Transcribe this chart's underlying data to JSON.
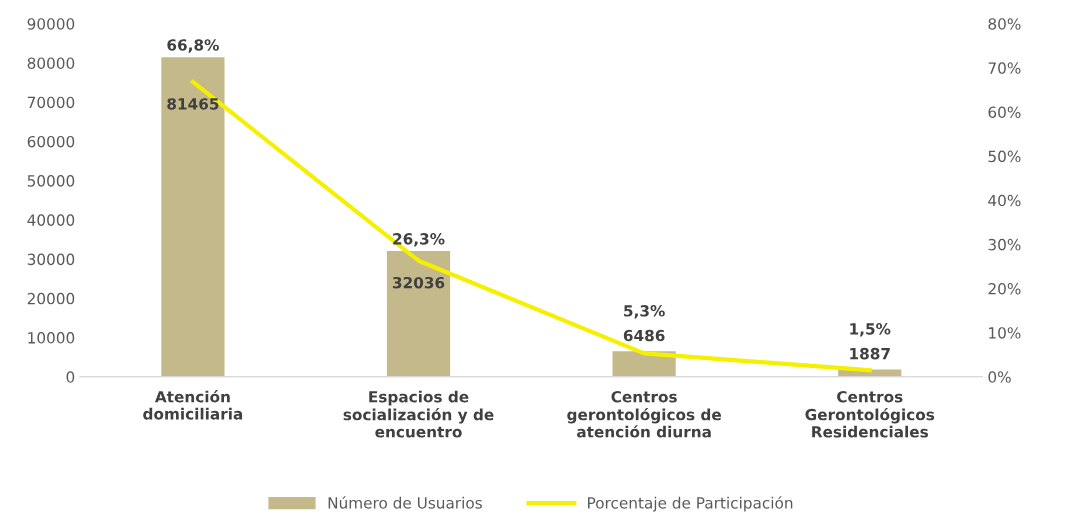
{
  "chart_data": {
    "type": "bar",
    "categories": [
      "Atención\ndomiciliaria",
      "Espacios de\nsocialización y de\nencuentro",
      "Centros\ngerontológicos de\natención diurna",
      "Centros\nGerontológicos\nResidenciales"
    ],
    "series": [
      {
        "name": "Número de Usuarios",
        "color": "#c4b98a",
        "values": [
          81465,
          32036,
          6486,
          1887
        ],
        "value_labels": [
          "81465",
          "32036",
          "6486",
          "1887"
        ]
      },
      {
        "name": "Porcentaje de Participación",
        "type": "line",
        "axis": "y2",
        "color": "#f5f000",
        "values": [
          66.8,
          26.3,
          5.3,
          1.5
        ],
        "value_labels": [
          "66,8%",
          "26,3%",
          "5,3%",
          "1,5%"
        ]
      }
    ],
    "ylim": [
      0,
      90000
    ],
    "yticks": [
      0,
      10000,
      20000,
      30000,
      40000,
      50000,
      60000,
      70000,
      80000,
      90000
    ],
    "y2lim": [
      0,
      80
    ],
    "y2ticks": [
      {
        "value": 0,
        "label": "0%"
      },
      {
        "value": 10,
        "label": "10%"
      },
      {
        "value": 20,
        "label": "20%"
      },
      {
        "value": 30,
        "label": "30%"
      },
      {
        "value": 40,
        "label": "40%"
      },
      {
        "value": 50,
        "label": "50%"
      },
      {
        "value": 60,
        "label": "60%"
      },
      {
        "value": 70,
        "label": "70%"
      },
      {
        "value": 80,
        "label": "80%"
      }
    ],
    "grid": false,
    "legend": "bottom",
    "marker": "none"
  }
}
